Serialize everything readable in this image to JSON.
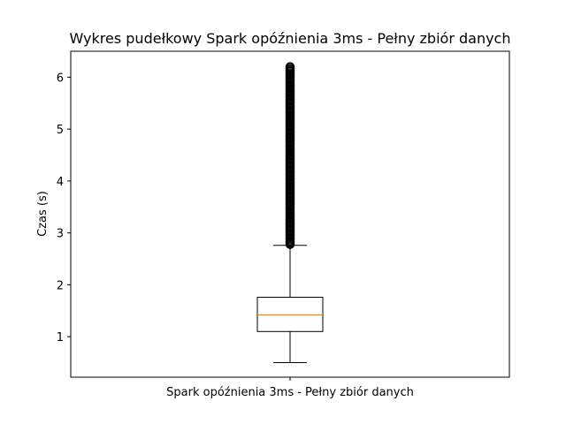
{
  "chart_data": {
    "type": "box",
    "title": "Wykres pudełkowy Spark opóźnienia 3ms - Pełny zbiór danych",
    "xlabel": "",
    "ylabel": "Czas (s)",
    "categories": [
      "Spark opóźnienia 3ms - Pełny zbiór danych"
    ],
    "ylim": [
      0.22,
      6.5
    ],
    "yticks": [
      1,
      2,
      3,
      4,
      5,
      6
    ],
    "boxes": [
      {
        "name": "Spark opóźnienia 3ms - Pełny zbiór danych",
        "whisker_low": 0.5,
        "q1": 1.1,
        "median": 1.42,
        "q3": 1.76,
        "whisker_high": 2.76,
        "outlier_range": [
          2.78,
          6.2
        ]
      }
    ],
    "grid": false,
    "colors": {
      "box": "#000000",
      "median": "#ff7f0e",
      "outlier": "#000000"
    }
  }
}
